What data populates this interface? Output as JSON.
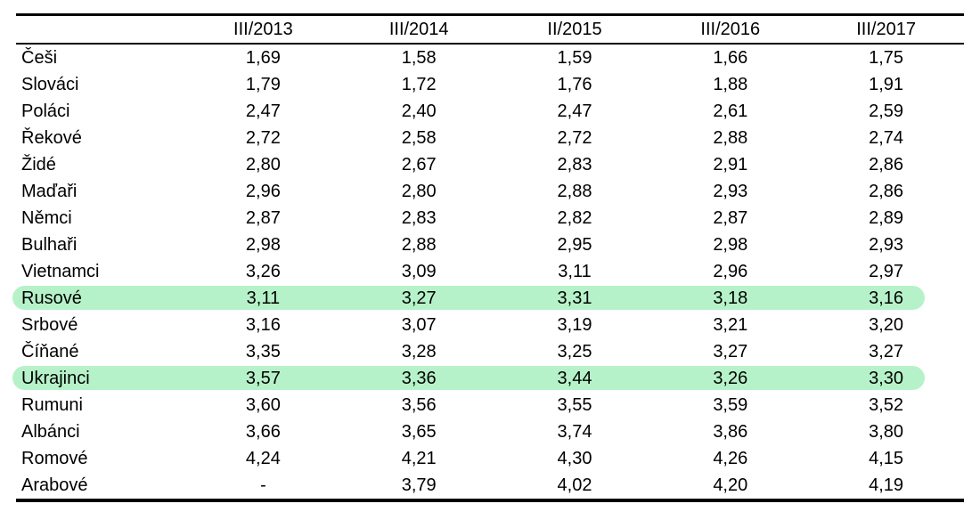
{
  "chart_data": {
    "type": "table",
    "title": "",
    "highlight_color": "#b6f2c9",
    "missing_value_symbol": "-",
    "columns": [
      "",
      "III/2013",
      "III/2014",
      "II/2015",
      "III/2016",
      "III/2017"
    ],
    "rows": [
      {
        "label": "Češi",
        "values": [
          "1,69",
          "1,58",
          "1,59",
          "1,66",
          "1,75"
        ],
        "highlighted": false
      },
      {
        "label": "Slováci",
        "values": [
          "1,79",
          "1,72",
          "1,76",
          "1,88",
          "1,91"
        ],
        "highlighted": false
      },
      {
        "label": "Poláci",
        "values": [
          "2,47",
          "2,40",
          "2,47",
          "2,61",
          "2,59"
        ],
        "highlighted": false
      },
      {
        "label": "Řekové",
        "values": [
          "2,72",
          "2,58",
          "2,72",
          "2,88",
          "2,74"
        ],
        "highlighted": false
      },
      {
        "label": "Židé",
        "values": [
          "2,80",
          "2,67",
          "2,83",
          "2,91",
          "2,86"
        ],
        "highlighted": false
      },
      {
        "label": "Maďaři",
        "values": [
          "2,96",
          "2,80",
          "2,88",
          "2,93",
          "2,86"
        ],
        "highlighted": false
      },
      {
        "label": "Němci",
        "values": [
          "2,87",
          "2,83",
          "2,82",
          "2,87",
          "2,89"
        ],
        "highlighted": false
      },
      {
        "label": "Bulhaři",
        "values": [
          "2,98",
          "2,88",
          "2,95",
          "2,98",
          "2,93"
        ],
        "highlighted": false
      },
      {
        "label": "Vietnamci",
        "values": [
          "3,26",
          "3,09",
          "3,11",
          "2,96",
          "2,97"
        ],
        "highlighted": false
      },
      {
        "label": "Rusové",
        "values": [
          "3,11",
          "3,27",
          "3,31",
          "3,18",
          "3,16"
        ],
        "highlighted": true
      },
      {
        "label": "Srbové",
        "values": [
          "3,16",
          "3,07",
          "3,19",
          "3,21",
          "3,20"
        ],
        "highlighted": false
      },
      {
        "label": "Číňané",
        "values": [
          "3,35",
          "3,28",
          "3,25",
          "3,27",
          "3,27"
        ],
        "highlighted": false
      },
      {
        "label": "Ukrajinci",
        "values": [
          "3,57",
          "3,36",
          "3,44",
          "3,26",
          "3,30"
        ],
        "highlighted": true
      },
      {
        "label": "Rumuni",
        "values": [
          "3,60",
          "3,56",
          "3,55",
          "3,59",
          "3,52"
        ],
        "highlighted": false
      },
      {
        "label": "Albánci",
        "values": [
          "3,66",
          "3,65",
          "3,74",
          "3,86",
          "3,80"
        ],
        "highlighted": false
      },
      {
        "label": "Romové",
        "values": [
          "4,24",
          "4,21",
          "4,30",
          "4,26",
          "4,15"
        ],
        "highlighted": false
      },
      {
        "label": "Arabové",
        "values": [
          "-",
          "3,79",
          "4,02",
          "4,20",
          "4,19"
        ],
        "highlighted": false
      }
    ]
  }
}
